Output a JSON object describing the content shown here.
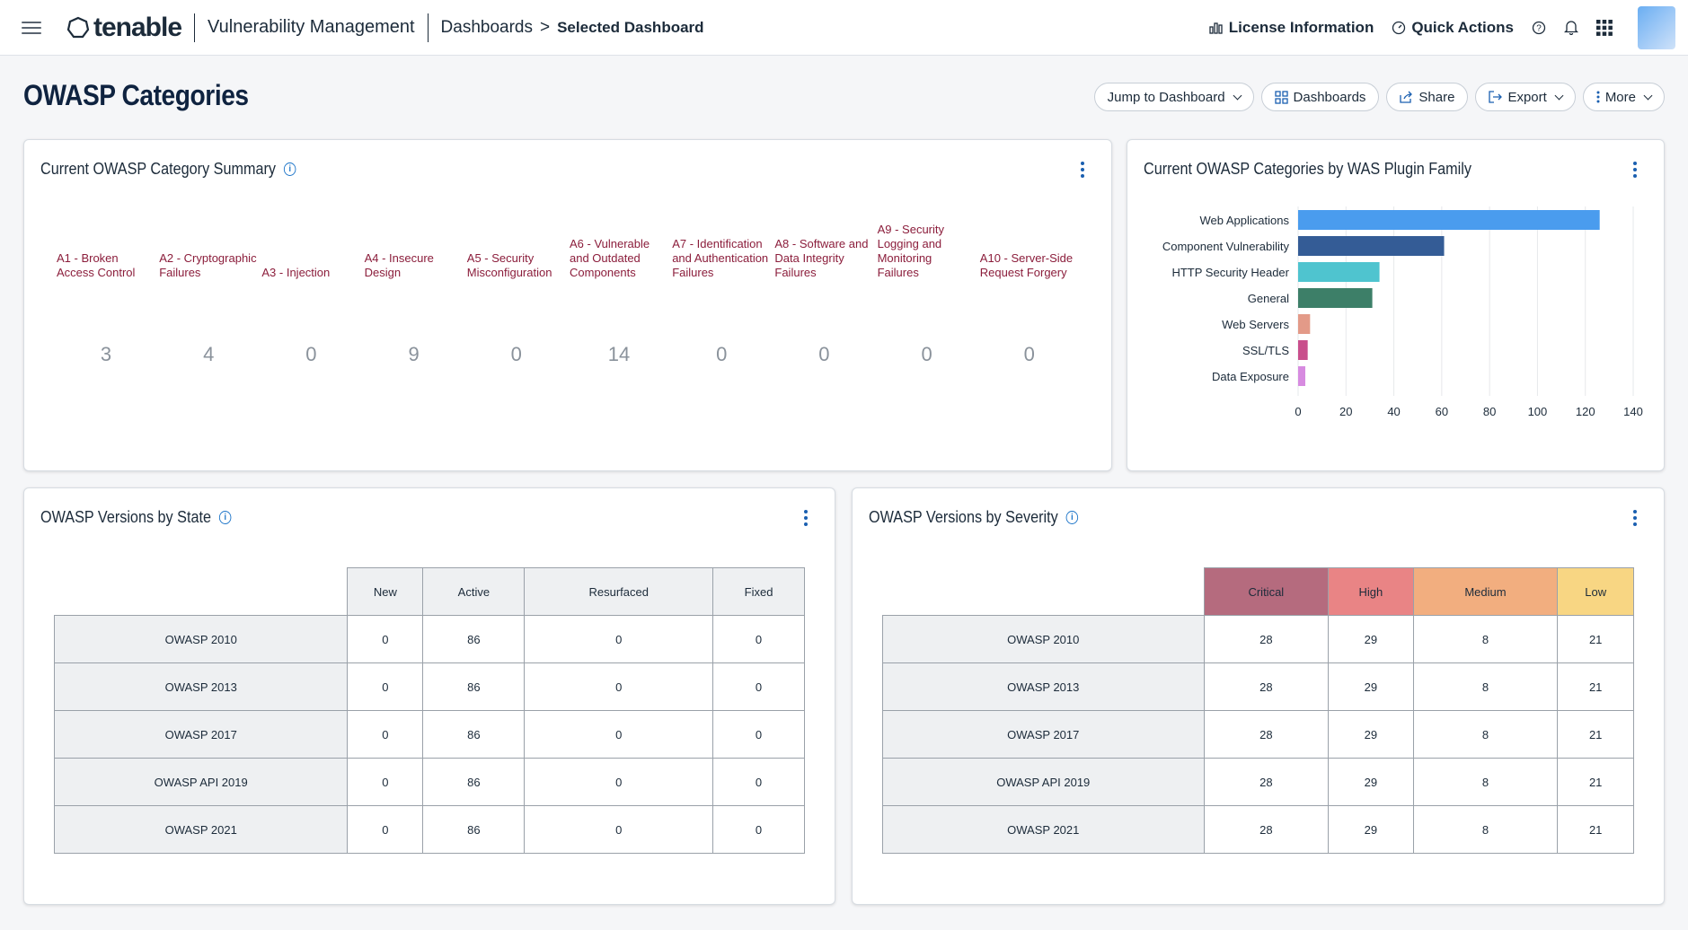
{
  "topbar": {
    "logo": "tenable",
    "product": "Vulnerability Management",
    "breadcrumb_link": "Dashboards",
    "breadcrumb_sep": ">",
    "breadcrumb_current": "Selected Dashboard",
    "license": "License Information",
    "quick_actions": "Quick Actions"
  },
  "page": {
    "title": "OWASP Categories",
    "actions": {
      "jump": "Jump to Dashboard",
      "dashboards": "Dashboards",
      "share": "Share",
      "export": "Export",
      "more": "More"
    }
  },
  "summary": {
    "title": "Current OWASP Category Summary",
    "label_color": "#8b1d3b",
    "items": [
      {
        "label": "A1 - Broken Access Control",
        "value": "3"
      },
      {
        "label": "A2 - Cryptographic Failures",
        "value": "4"
      },
      {
        "label": "A3 - Injection",
        "value": "0"
      },
      {
        "label": "A4 - Insecure Design",
        "value": "9"
      },
      {
        "label": "A5 - Security Misconfiguration",
        "value": "0"
      },
      {
        "label": "A6 - Vulnerable and Outdated Components",
        "value": "14"
      },
      {
        "label": "A7 - Identification and Authentication Failures",
        "value": "0"
      },
      {
        "label": "A8 - Software and Data Integrity Failures",
        "value": "0"
      },
      {
        "label": "A9 - Security Logging and Monitoring Failures",
        "value": "0"
      },
      {
        "label": "A10 - Server-Side Request Forgery",
        "value": "0"
      }
    ]
  },
  "plugin_chart": {
    "title": "Current OWASP Categories by WAS Plugin Family"
  },
  "chart_data": {
    "type": "bar",
    "orientation": "horizontal",
    "categories": [
      "Web Applications",
      "Component Vulnerability",
      "HTTP Security Header",
      "General",
      "Web Servers",
      "SSL/TLS",
      "Data Exposure"
    ],
    "values": [
      126,
      61,
      34,
      31,
      5,
      4,
      3
    ],
    "colors": [
      "#4a9cee",
      "#345c96",
      "#4fc4cf",
      "#3d7f68",
      "#e39a88",
      "#c94f8c",
      "#d78be0"
    ],
    "xlim": [
      0,
      140
    ],
    "xticks": [
      "0",
      "20",
      "40",
      "60",
      "80",
      "100",
      "120",
      "140"
    ],
    "grid": true
  },
  "state_table": {
    "title": "OWASP Versions by State",
    "columns": [
      "New",
      "Active",
      "Resurfaced",
      "Fixed"
    ],
    "rows": [
      {
        "name": "OWASP 2010",
        "cells": [
          "0",
          "86",
          "0",
          "0"
        ]
      },
      {
        "name": "OWASP 2013",
        "cells": [
          "0",
          "86",
          "0",
          "0"
        ]
      },
      {
        "name": "OWASP 2017",
        "cells": [
          "0",
          "86",
          "0",
          "0"
        ]
      },
      {
        "name": "OWASP API 2019",
        "cells": [
          "0",
          "86",
          "0",
          "0"
        ]
      },
      {
        "name": "OWASP 2021",
        "cells": [
          "0",
          "86",
          "0",
          "0"
        ]
      }
    ]
  },
  "severity_table": {
    "title": "OWASP Versions by Severity",
    "columns": [
      "Critical",
      "High",
      "Medium",
      "Low"
    ],
    "column_colors": [
      "#b56b7e",
      "#e98485",
      "#f2ae7f",
      "#f8d683"
    ],
    "rows": [
      {
        "name": "OWASP 2010",
        "cells": [
          "28",
          "29",
          "8",
          "21"
        ]
      },
      {
        "name": "OWASP 2013",
        "cells": [
          "28",
          "29",
          "8",
          "21"
        ]
      },
      {
        "name": "OWASP 2017",
        "cells": [
          "28",
          "29",
          "8",
          "21"
        ]
      },
      {
        "name": "OWASP API 2019",
        "cells": [
          "28",
          "29",
          "8",
          "21"
        ]
      },
      {
        "name": "OWASP 2021",
        "cells": [
          "28",
          "29",
          "8",
          "21"
        ]
      }
    ]
  }
}
